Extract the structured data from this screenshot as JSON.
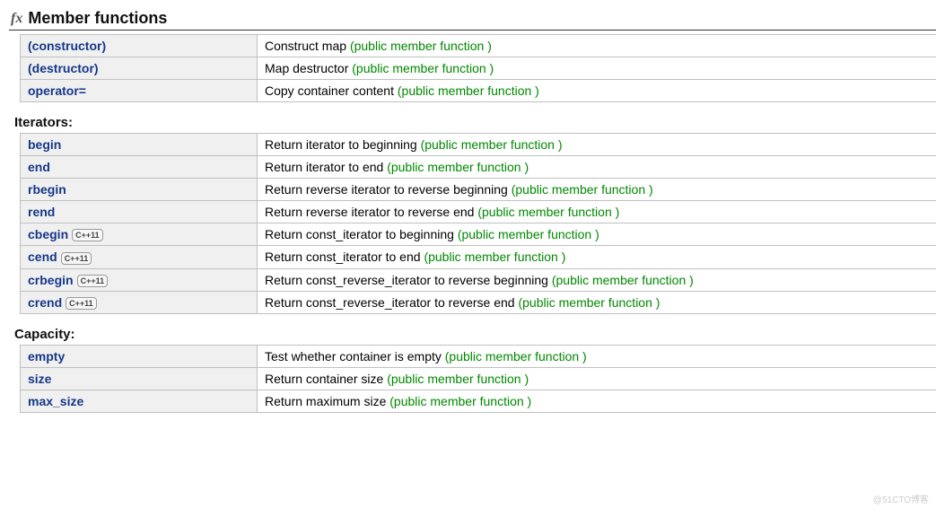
{
  "header": {
    "fx_label": "fx",
    "title": "Member functions"
  },
  "tag_text": "(public member function )",
  "cpp11_badge": "C++11",
  "sections": [
    {
      "title": null,
      "rows": [
        {
          "name": "(constructor)",
          "desc": "Construct map",
          "cpp11": false
        },
        {
          "name": "(destructor)",
          "desc": "Map destructor",
          "cpp11": false
        },
        {
          "name": "operator=",
          "desc": "Copy container content",
          "cpp11": false
        }
      ]
    },
    {
      "title": "Iterators:",
      "rows": [
        {
          "name": "begin",
          "desc": "Return iterator to beginning",
          "cpp11": false
        },
        {
          "name": "end",
          "desc": "Return iterator to end",
          "cpp11": false
        },
        {
          "name": "rbegin",
          "desc": "Return reverse iterator to reverse beginning",
          "cpp11": false
        },
        {
          "name": "rend",
          "desc": "Return reverse iterator to reverse end",
          "cpp11": false
        },
        {
          "name": "cbegin",
          "desc": "Return const_iterator to beginning",
          "cpp11": true
        },
        {
          "name": "cend",
          "desc": "Return const_iterator to end",
          "cpp11": true
        },
        {
          "name": "crbegin",
          "desc": "Return const_reverse_iterator to reverse beginning",
          "cpp11": true
        },
        {
          "name": "crend",
          "desc": "Return const_reverse_iterator to reverse end",
          "cpp11": true
        }
      ]
    },
    {
      "title": "Capacity:",
      "rows": [
        {
          "name": "empty",
          "desc": "Test whether container is empty",
          "cpp11": false
        },
        {
          "name": "size",
          "desc": "Return container size",
          "cpp11": false
        },
        {
          "name": "max_size",
          "desc": "Return maximum size",
          "cpp11": false
        }
      ]
    }
  ],
  "watermark": "@51CTO博客"
}
